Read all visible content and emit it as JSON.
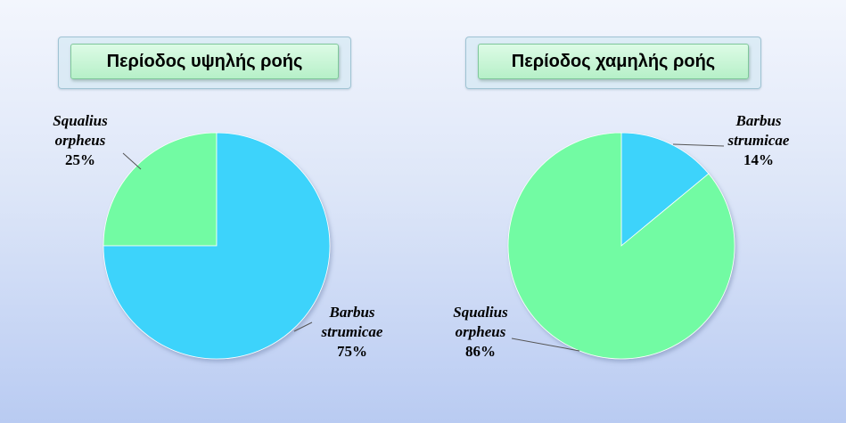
{
  "colors": {
    "cyan": "#3dd3fb",
    "green": "#72fba3",
    "leader": "#555555"
  },
  "chart_data": [
    {
      "type": "pie",
      "title": "Περίοδος υψηλής ροής",
      "slices": [
        {
          "name": "Squalius orpheus",
          "value": 25,
          "label_lines": [
            "Squalius",
            "orpheus"
          ],
          "pct_label": "25%",
          "color": "#72fba3"
        },
        {
          "name": "Barbus strumicae",
          "value": 75,
          "label_lines": [
            "Barbus",
            "strumicae"
          ],
          "pct_label": "75%",
          "color": "#3dd3fb"
        }
      ]
    },
    {
      "type": "pie",
      "title": "Περίοδος χαμηλής ροής",
      "slices": [
        {
          "name": "Barbus strumicae",
          "value": 14,
          "label_lines": [
            "Barbus",
            "strumicae"
          ],
          "pct_label": "14%",
          "color": "#3dd3fb"
        },
        {
          "name": "Squalius orpheus",
          "value": 86,
          "label_lines": [
            "Squalius",
            "orpheus"
          ],
          "pct_label": "86%",
          "color": "#72fba3"
        }
      ]
    }
  ]
}
